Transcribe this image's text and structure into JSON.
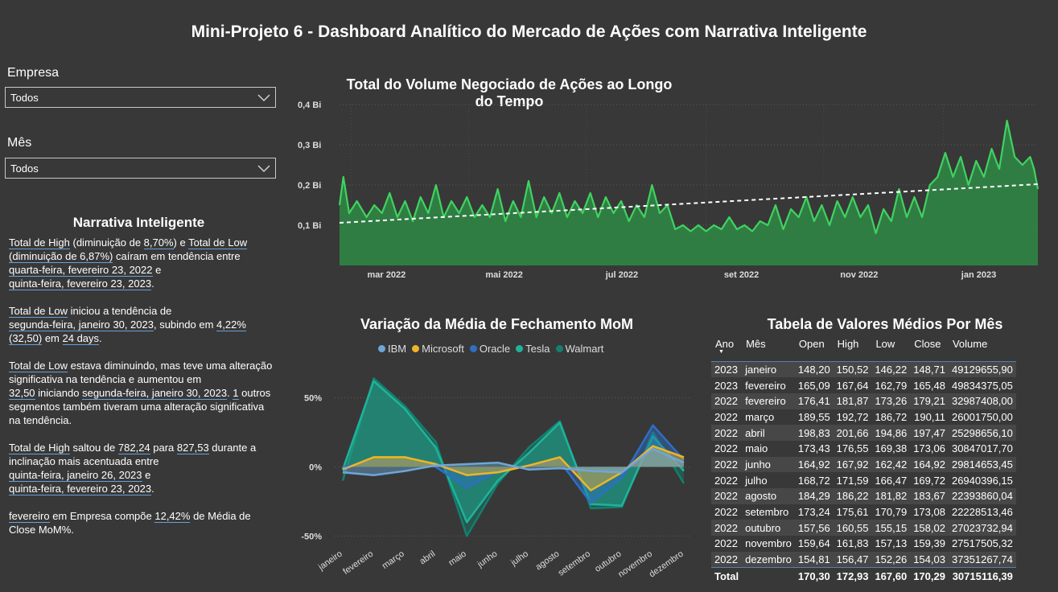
{
  "title": "Mini-Projeto 6 - Dashboard Analítico do Mercado de Ações com Narrativa Inteligente",
  "filters": {
    "empresa": {
      "label": "Empresa",
      "value": "Todos"
    },
    "mes": {
      "label": "Mês",
      "value": "Todos"
    }
  },
  "narrative": {
    "title": "Narrativa Inteligente",
    "p1": {
      "a": "Total de High",
      "b": " (diminuição de ",
      "c": "8,70%",
      "d": ") e ",
      "e": "Total de Low",
      "f": "(diminuição de 6,87%)",
      "g": " caíram em tendência entre ",
      "h": "quarta-feira, fevereiro 23, 2022",
      "i": " e ",
      "j": "quinta-feira, fevereiro 23, 2023",
      "k": "."
    },
    "p2": {
      "a": "Total de Low",
      "b": " iniciou a tendência de ",
      "c": "segunda-feira, janeiro 30, 2023",
      "d": ", subindo em ",
      "e": "4,22%",
      "f": "(32,50)",
      "g": " em ",
      "h": "24 days",
      "i": "."
    },
    "p3": {
      "a": "Total de Low",
      "b": " estava diminuindo, mas teve uma alteração significativa na tendência e aumentou em ",
      "c": "32,50",
      "d": " iniciando ",
      "e": "segunda-feira, janeiro 30, 2023",
      "f": ". ",
      "g": "1",
      "h": " outros segmentos também tiveram uma alteração significativa na tendência."
    },
    "p4": {
      "a": "Total de High",
      "b": " saltou de ",
      "c": "782,24",
      "d": " para ",
      "e": "827,53",
      "f": " durante a inclinação mais acentuada entre ",
      "g": "quinta-feira, janeiro 26, 2023",
      "h": " e ",
      "i": "quinta-feira, fevereiro 23, 2023",
      "j": "."
    },
    "p5": {
      "a": "fevereiro",
      "b": " em Empresa  compõe ",
      "c": "12,42%",
      "d": " de Média de Close MoM%."
    }
  },
  "chart_data": [
    {
      "type": "area",
      "title": "Total do Volume Negociado de Ações ao Longo do Tempo",
      "ylim": [
        0,
        0.4
      ],
      "yticks": [
        0.1,
        0.2,
        0.3,
        0.4
      ],
      "ytick_labels": [
        "0,1 Bi",
        "0,2 Bi",
        "0,3 Bi",
        "0,4 Bi"
      ],
      "xtick_labels": [
        "mar 2022",
        "mai 2022",
        "jul 2022",
        "set 2022",
        "nov 2022",
        "jan 2023"
      ],
      "xtick_positions": [
        6,
        67,
        128,
        190,
        251,
        313
      ],
      "x_range": [
        0,
        362
      ],
      "trend": [
        0.106,
        0.202
      ],
      "color": "#3fd35f",
      "area_color": "#2f8a47",
      "trend_color": "#ffffff",
      "grid": true,
      "points": [
        [
          0,
          0.15
        ],
        [
          2,
          0.22
        ],
        [
          5,
          0.13
        ],
        [
          9,
          0.16
        ],
        [
          14,
          0.12
        ],
        [
          18,
          0.15
        ],
        [
          22,
          0.13
        ],
        [
          26,
          0.18
        ],
        [
          30,
          0.12
        ],
        [
          34,
          0.16
        ],
        [
          38,
          0.11
        ],
        [
          42,
          0.17
        ],
        [
          46,
          0.13
        ],
        [
          50,
          0.2
        ],
        [
          54,
          0.12
        ],
        [
          58,
          0.16
        ],
        [
          62,
          0.13
        ],
        [
          66,
          0.17
        ],
        [
          70,
          0.12
        ],
        [
          74,
          0.15
        ],
        [
          78,
          0.12
        ],
        [
          82,
          0.19
        ],
        [
          86,
          0.11
        ],
        [
          90,
          0.16
        ],
        [
          94,
          0.12
        ],
        [
          98,
          0.21
        ],
        [
          102,
          0.12
        ],
        [
          106,
          0.17
        ],
        [
          110,
          0.13
        ],
        [
          114,
          0.18
        ],
        [
          118,
          0.12
        ],
        [
          122,
          0.16
        ],
        [
          126,
          0.13
        ],
        [
          130,
          0.18
        ],
        [
          134,
          0.12
        ],
        [
          138,
          0.17
        ],
        [
          142,
          0.13
        ],
        [
          146,
          0.16
        ],
        [
          150,
          0.11
        ],
        [
          154,
          0.15
        ],
        [
          158,
          0.12
        ],
        [
          162,
          0.2
        ],
        [
          166,
          0.13
        ],
        [
          170,
          0.15
        ],
        [
          174,
          0.09
        ],
        [
          178,
          0.1
        ],
        [
          182,
          0.085
        ],
        [
          186,
          0.1
        ],
        [
          190,
          0.085
        ],
        [
          194,
          0.1
        ],
        [
          198,
          0.09
        ],
        [
          202,
          0.12
        ],
        [
          206,
          0.09
        ],
        [
          210,
          0.1
        ],
        [
          214,
          0.085
        ],
        [
          218,
          0.11
        ],
        [
          222,
          0.1
        ],
        [
          226,
          0.15
        ],
        [
          230,
          0.09
        ],
        [
          234,
          0.14
        ],
        [
          238,
          0.12
        ],
        [
          242,
          0.17
        ],
        [
          246,
          0.11
        ],
        [
          250,
          0.15
        ],
        [
          254,
          0.1
        ],
        [
          258,
          0.16
        ],
        [
          262,
          0.12
        ],
        [
          266,
          0.17
        ],
        [
          270,
          0.12
        ],
        [
          274,
          0.15
        ],
        [
          278,
          0.08
        ],
        [
          282,
          0.14
        ],
        [
          286,
          0.11
        ],
        [
          290,
          0.19
        ],
        [
          294,
          0.12
        ],
        [
          298,
          0.17
        ],
        [
          302,
          0.12
        ],
        [
          306,
          0.2
        ],
        [
          310,
          0.22
        ],
        [
          314,
          0.28
        ],
        [
          318,
          0.22
        ],
        [
          322,
          0.27
        ],
        [
          326,
          0.2
        ],
        [
          330,
          0.26
        ],
        [
          334,
          0.22
        ],
        [
          338,
          0.29
        ],
        [
          342,
          0.24
        ],
        [
          346,
          0.36
        ],
        [
          350,
          0.27
        ],
        [
          354,
          0.25
        ],
        [
          358,
          0.27
        ],
        [
          360,
          0.24
        ],
        [
          362,
          0.19
        ]
      ]
    },
    {
      "type": "area",
      "title": "Variação da Média de Fechamento MoM",
      "categories": [
        "janeiro",
        "fevereiro",
        "março",
        "abril",
        "maio",
        "junho",
        "julho",
        "agosto",
        "setembro",
        "outubro",
        "novembro",
        "dezembro"
      ],
      "ylim": [
        -55,
        70
      ],
      "yticks": [
        50,
        0,
        -50
      ],
      "ytick_labels": [
        "50%",
        "0%",
        "-50%"
      ],
      "series": [
        {
          "name": "IBM",
          "color": "#6ea6d8",
          "values": [
            -4,
            -6,
            -3,
            1,
            2,
            3,
            -2,
            -1,
            -3,
            -4,
            13,
            3
          ]
        },
        {
          "name": "Microsoft",
          "color": "#f0b429",
          "values": [
            -2,
            7,
            7,
            2,
            -6,
            -4,
            1,
            7,
            -17,
            -4,
            15,
            7
          ]
        },
        {
          "name": "Oracle",
          "color": "#2e6fc4",
          "values": [
            0,
            4,
            4,
            0,
            -15,
            -3,
            1,
            4,
            -26,
            -8,
            30,
            5
          ]
        },
        {
          "name": "Tesla",
          "color": "#1fb39a",
          "values": [
            -2,
            62,
            42,
            14,
            -40,
            -10,
            10,
            32,
            -27,
            -28,
            22,
            -3
          ]
        },
        {
          "name": "Walmart",
          "color": "#13806e",
          "values": [
            -10,
            64,
            44,
            18,
            -50,
            -12,
            14,
            33,
            -30,
            -29,
            25,
            -12
          ]
        }
      ]
    }
  ],
  "table": {
    "title": "Tabela de Valores Médios Por Mês",
    "headers": [
      "Ano",
      "Mês",
      "Open",
      "High",
      "Low",
      "Close",
      "Volume"
    ],
    "rows": [
      [
        "2023",
        "janeiro",
        "148,20",
        "150,52",
        "146,22",
        "148,71",
        "49129655,90"
      ],
      [
        "2023",
        "fevereiro",
        "165,09",
        "167,64",
        "162,79",
        "165,48",
        "49834375,05"
      ],
      [
        "2022",
        "fevereiro",
        "176,41",
        "181,87",
        "173,26",
        "179,21",
        "32987408,00"
      ],
      [
        "2022",
        "março",
        "189,55",
        "192,72",
        "186,72",
        "190,11",
        "26001750,00"
      ],
      [
        "2022",
        "abril",
        "198,83",
        "201,66",
        "194,86",
        "197,47",
        "25298656,10"
      ],
      [
        "2022",
        "maio",
        "173,43",
        "176,55",
        "169,38",
        "173,06",
        "30847017,70"
      ],
      [
        "2022",
        "junho",
        "164,92",
        "167,92",
        "162,42",
        "164,92",
        "29814653,45"
      ],
      [
        "2022",
        "julho",
        "168,72",
        "171,59",
        "166,47",
        "169,72",
        "26940396,15"
      ],
      [
        "2022",
        "agosto",
        "184,29",
        "186,22",
        "181,82",
        "183,67",
        "22393860,04"
      ],
      [
        "2022",
        "setembro",
        "173,24",
        "175,61",
        "170,79",
        "173,08",
        "22228513,46"
      ],
      [
        "2022",
        "outubro",
        "157,56",
        "160,55",
        "155,15",
        "158,02",
        "27023732,94"
      ],
      [
        "2022",
        "novembro",
        "159,64",
        "161,83",
        "157,13",
        "159,39",
        "27517505,32"
      ],
      [
        "2022",
        "dezembro",
        "154,81",
        "156,47",
        "152,26",
        "154,03",
        "37351267,74"
      ]
    ],
    "total": [
      "Total",
      "",
      "170,30",
      "172,93",
      "167,60",
      "170,29",
      "30715116,39"
    ]
  }
}
